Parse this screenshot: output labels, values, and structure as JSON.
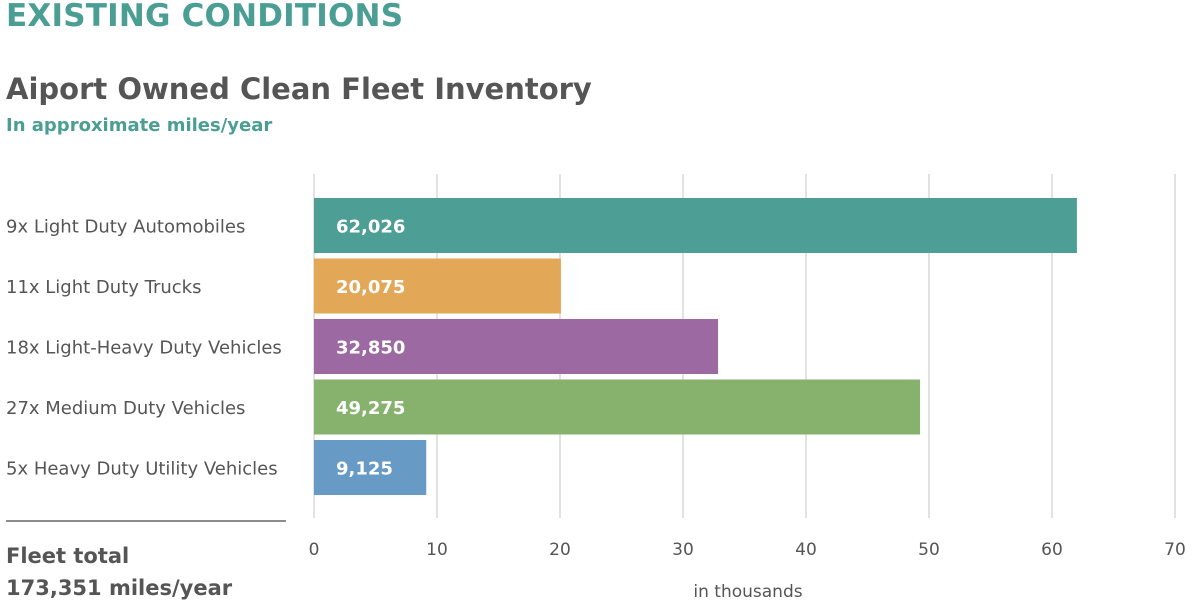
{
  "header": {
    "section_title": "EXISTING CONDITIONS",
    "chart_title": "Aiport Owned Clean Fleet Inventory",
    "chart_subtitle": "In approximate miles/year"
  },
  "summary": {
    "label": "Fleet total",
    "value": "173,351 miles/year"
  },
  "chart_data": {
    "type": "bar",
    "orientation": "horizontal",
    "title": "Aiport Owned Clean Fleet Inventory",
    "subtitle": "In approximate miles/year",
    "xlabel": "in thousands",
    "ylabel": "",
    "xlim": [
      0,
      70
    ],
    "xticks": [
      0,
      10,
      20,
      30,
      40,
      50,
      60,
      70
    ],
    "grid": "vertical",
    "legend": "none",
    "categories": [
      "9x Light Duty Automobiles",
      "11x Light Duty Trucks",
      "18x Light-Heavy Duty Vehicles",
      "27x Medium Duty Vehicles",
      "5x Heavy Duty Utility Vehicles"
    ],
    "values": [
      62.026,
      20.075,
      32.85,
      49.275,
      9.125
    ],
    "value_labels": [
      "62,026",
      "20,075",
      "32,850",
      "49,275",
      "9,125"
    ],
    "colors": [
      "#4d9e94",
      "#e3a758",
      "#9c69a2",
      "#86b26e",
      "#679bc6"
    ],
    "label_color": "#ffffff",
    "grid_color": "#cfcfcf",
    "text_color": "#555555"
  }
}
